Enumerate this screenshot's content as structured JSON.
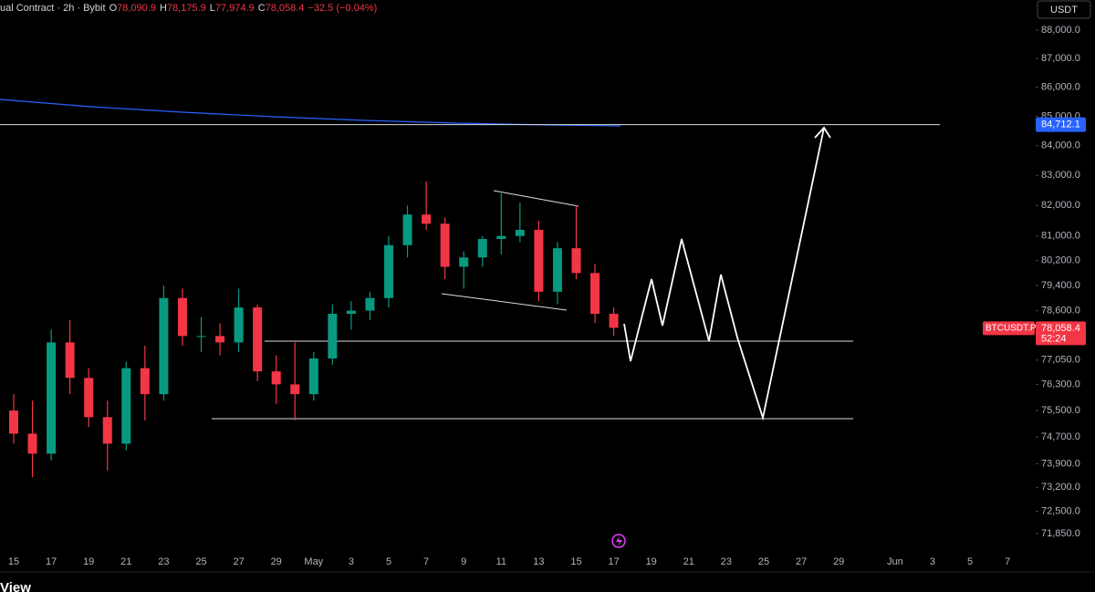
{
  "chart_data": {
    "type": "candlestick",
    "title": "ual Contract · 2h · Bybit",
    "ohlc_header": [
      {
        "key": "O",
        "value": "78,090.9"
      },
      {
        "key": "H",
        "value": "78,175.9"
      },
      {
        "key": "L",
        "value": "77,974.9"
      },
      {
        "key": "C",
        "value": "78,058.4"
      }
    ],
    "change": "−32.5 (−0.04%)",
    "currency": "USDT",
    "symbol": "BTCUSDT.P",
    "last_price": "78,058.4",
    "countdown": "52:24",
    "price_line": {
      "value": 84712.1,
      "label": "84,712.1"
    },
    "branding": "View",
    "log_scale": true,
    "up_color": "#089981",
    "down_color": "#f23645",
    "ylim": [
      71455,
      89073
    ],
    "yticks": [
      {
        "value": 88000,
        "label": "88,000.0"
      },
      {
        "value": 87000,
        "label": "87,000.0"
      },
      {
        "value": 86000,
        "label": "86,000.0"
      },
      {
        "value": 85000,
        "label": "85,000.0"
      },
      {
        "value": 84000,
        "label": "84,000.0"
      },
      {
        "value": 83000,
        "label": "83,000.0"
      },
      {
        "value": 82000,
        "label": "82,000.0"
      },
      {
        "value": 81000,
        "label": "81,000.0"
      },
      {
        "value": 80200,
        "label": "80,200.0"
      },
      {
        "value": 79400,
        "label": "79,400.0"
      },
      {
        "value": 78600,
        "label": "78,600.0"
      },
      {
        "value": 77050,
        "label": "77,050.0"
      },
      {
        "value": 76300,
        "label": "76,300.0"
      },
      {
        "value": 75500,
        "label": "75,500.0"
      },
      {
        "value": 74700,
        "label": "74,700.0"
      },
      {
        "value": 73900,
        "label": "73,900.0"
      },
      {
        "value": 73200,
        "label": "73,200.0"
      },
      {
        "value": 72500,
        "label": "72,500.0"
      },
      {
        "value": 71850,
        "label": "71,850.0"
      }
    ],
    "categories": [
      "15",
      null,
      "17",
      null,
      "19",
      null,
      "21",
      null,
      "23",
      null,
      "25",
      null,
      "27",
      null,
      "29",
      null,
      "May",
      null,
      "3",
      null,
      "5",
      null,
      "7",
      null,
      "9",
      null,
      "11",
      null,
      "13",
      null,
      "15",
      null,
      "17",
      null,
      "19",
      null,
      "21",
      null,
      "23",
      null,
      "25",
      null,
      "27",
      null,
      "29",
      null,
      null,
      "Jun",
      null,
      "3",
      null,
      "5",
      null,
      "7"
    ],
    "open": [
      75500,
      74800,
      74200,
      77600,
      76500,
      75300,
      74500,
      76800,
      76000,
      79000,
      77800,
      77800,
      77600,
      78700,
      76700,
      76300,
      76000,
      77100,
      78500,
      78600,
      79000,
      80700,
      81700,
      81400,
      80000,
      80300,
      80900,
      81000,
      81200,
      79200,
      80600,
      79800,
      78500,
      null,
      null,
      null,
      null,
      null,
      null,
      null,
      null,
      null,
      null,
      null,
      null,
      null,
      null,
      null,
      null,
      null,
      null,
      null,
      null,
      null
    ],
    "high": [
      76000,
      75800,
      78000,
      78300,
      76800,
      75800,
      77000,
      77500,
      79400,
      79300,
      78400,
      78200,
      79300,
      78800,
      77200,
      77600,
      77300,
      78800,
      78900,
      79200,
      81000,
      82000,
      82800,
      81600,
      80500,
      81000,
      82400,
      82100,
      81500,
      80800,
      82000,
      80100,
      78700,
      null,
      null,
      null,
      null,
      null,
      null,
      null,
      null,
      null,
      null,
      null,
      null,
      null,
      null,
      null,
      null,
      null,
      null,
      null,
      null,
      null
    ],
    "low": [
      74500,
      73500,
      74000,
      76000,
      75000,
      73700,
      74300,
      75200,
      75800,
      77500,
      77300,
      77200,
      77300,
      76400,
      75700,
      75200,
      75800,
      76900,
      78000,
      78300,
      78700,
      80300,
      81200,
      79600,
      79300,
      80000,
      80400,
      80800,
      78900,
      78800,
      79600,
      78200,
      77800,
      null,
      null,
      null,
      null,
      null,
      null,
      null,
      null,
      null,
      null,
      null,
      null,
      null,
      null,
      null,
      null,
      null,
      null,
      null,
      null,
      null
    ],
    "close": [
      74800,
      74200,
      77600,
      76500,
      75300,
      74500,
      76800,
      76000,
      79000,
      77800,
      77800,
      77600,
      78700,
      76700,
      76300,
      76000,
      77100,
      78500,
      78600,
      79000,
      80700,
      81700,
      81400,
      80000,
      80300,
      80900,
      81000,
      81200,
      79200,
      80600,
      79800,
      78500,
      78058.4,
      null,
      null,
      null,
      null,
      null,
      null,
      null,
      null,
      null,
      null,
      null,
      null,
      null,
      null,
      null,
      null,
      null,
      null,
      null,
      null,
      null
    ]
  }
}
